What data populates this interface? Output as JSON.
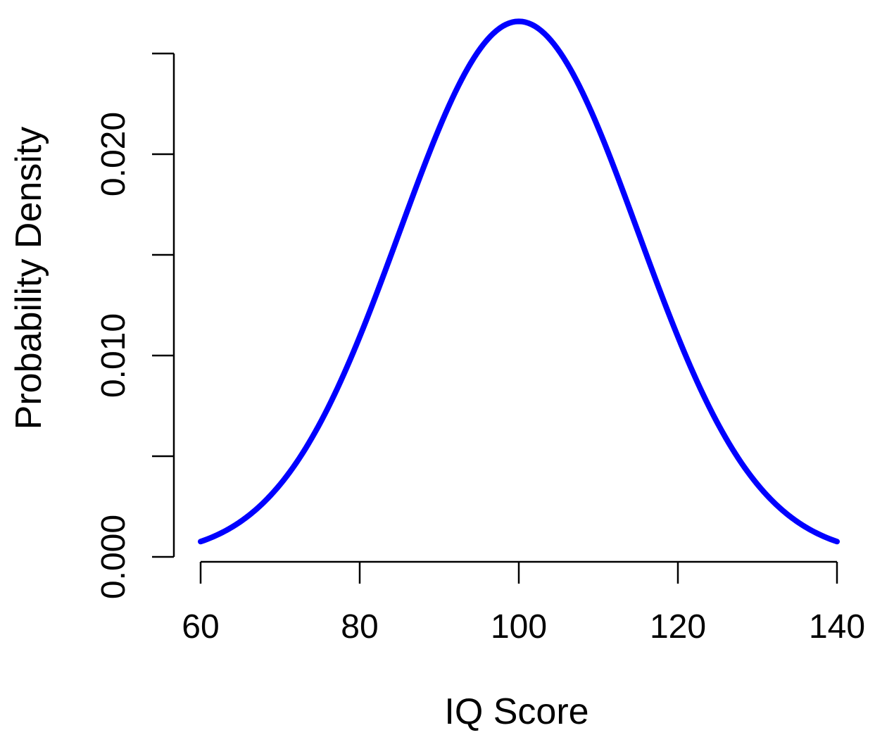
{
  "chart_data": {
    "type": "line",
    "xlabel": "IQ Score",
    "ylabel": "Probability Density",
    "xlim": [
      60,
      140
    ],
    "ylim": [
      0,
      0.025
    ],
    "x_ticks": [
      60,
      80,
      100,
      120,
      140
    ],
    "x_tick_labels": [
      "60",
      "80",
      "100",
      "120",
      "140"
    ],
    "y_ticks": [
      0,
      0.005,
      0.01,
      0.015,
      0.02,
      0.025
    ],
    "y_tick_labels": [
      "0.000",
      "",
      "0.010",
      "",
      "0.020",
      ""
    ],
    "grid": false,
    "series": [
      {
        "color": "#0000ff",
        "distribution": "normal",
        "mean": 100,
        "sd": 15,
        "x": [
          60,
          62,
          64,
          66,
          68,
          70,
          72,
          74,
          76,
          78,
          80,
          82,
          84,
          86,
          88,
          90,
          92,
          94,
          96,
          98,
          100,
          102,
          104,
          106,
          108,
          110,
          112,
          114,
          116,
          118,
          120,
          122,
          124,
          126,
          128,
          130,
          132,
          134,
          136,
          138,
          140
        ],
        "y": [
          0.00076,
          0.00108,
          0.0015,
          0.00203,
          0.0027,
          0.0036,
          0.00463,
          0.00587,
          0.0073,
          0.00889,
          0.01093,
          0.01269,
          0.01474,
          0.01673,
          0.01856,
          0.0213,
          0.02285,
          0.02458,
          0.02595,
          0.02678,
          0.0266,
          0.02678,
          0.02595,
          0.02458,
          0.02285,
          0.0213,
          0.01856,
          0.01673,
          0.01474,
          0.01269,
          0.01093,
          0.00889,
          0.0073,
          0.00587,
          0.00463,
          0.0036,
          0.0027,
          0.00203,
          0.0015,
          0.00108,
          0.00076
        ]
      }
    ]
  }
}
